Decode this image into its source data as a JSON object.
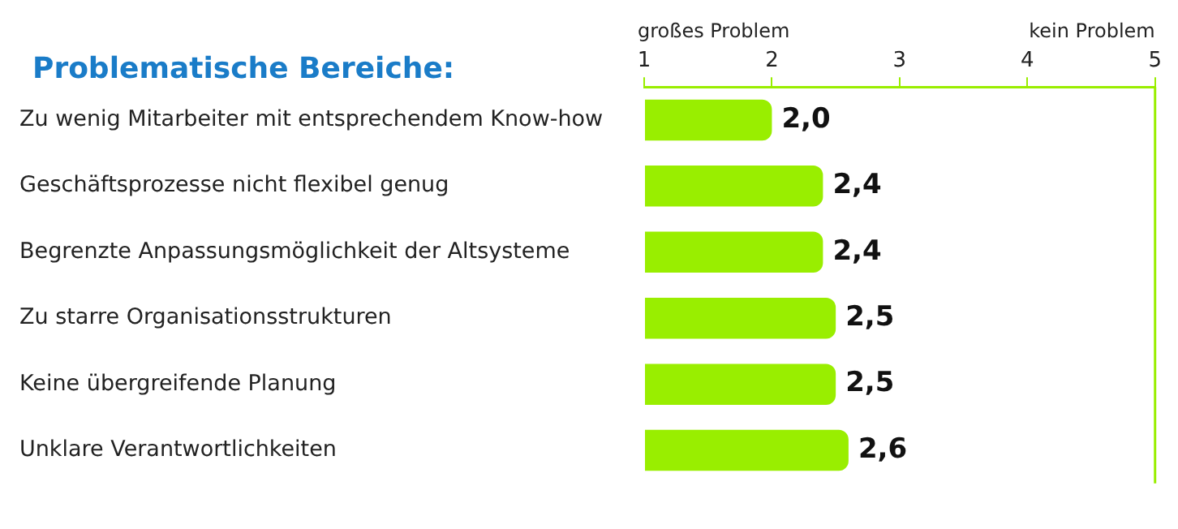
{
  "chart_data": {
    "type": "bar",
    "orientation": "horizontal",
    "title": "Problematische Bereiche:",
    "categories": [
      "Zu wenig Mitarbeiter mit entsprechendem Know-how",
      "Geschäftsprozesse nicht flexibel genug",
      "Begrenzte Anpassungsmöglichkeit der Altsysteme",
      "Zu starre Organisationsstrukturen",
      "Keine übergreifende Planung",
      "Unklare Verantwortlichkeiten"
    ],
    "values": [
      2.0,
      2.4,
      2.4,
      2.5,
      2.5,
      2.6
    ],
    "value_labels": [
      "2,0",
      "2,4",
      "2,4",
      "2,5",
      "2,5",
      "2,6"
    ],
    "color": "#99ee00",
    "xlim": [
      1,
      5
    ],
    "xticks": [
      1,
      2,
      3,
      4,
      5
    ],
    "annotations": [
      "großes Problem",
      "kein Problem"
    ],
    "grid": false,
    "legend": false
  }
}
